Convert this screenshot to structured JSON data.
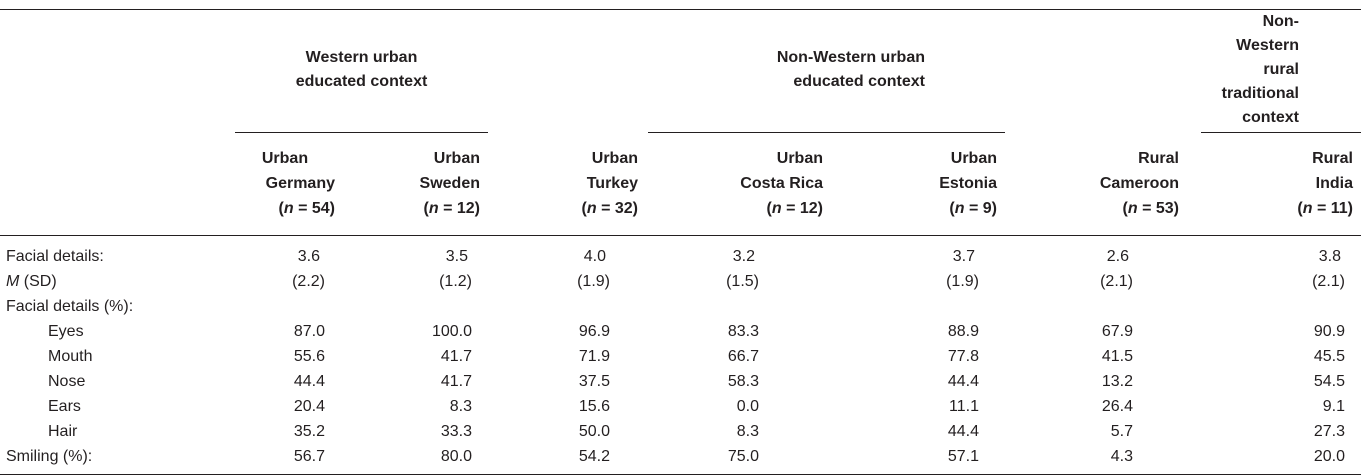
{
  "groups": [
    {
      "line1": "Western urban",
      "line2": "educated context"
    },
    {
      "line1": "Non-Western urban",
      "line2": "educated context"
    },
    {
      "line1": "Non-Western rural",
      "line2": "traditional context"
    }
  ],
  "columns": [
    {
      "line1": "Urban",
      "line2": "Germany",
      "n_label": "n",
      "n_value": " = 54)"
    },
    {
      "line1": "Urban",
      "line2": "Sweden",
      "n_label": "n",
      "n_value": " = 12)"
    },
    {
      "line1": "Urban",
      "line2": "Turkey",
      "n_label": "n",
      "n_value": " = 32)"
    },
    {
      "line1": "Urban",
      "line2": "Costa Rica",
      "n_label": "n",
      "n_value": " = 12)"
    },
    {
      "line1": "Urban",
      "line2": "Estonia",
      "n_label": "n",
      "n_value": " = 9)"
    },
    {
      "line1": "Rural",
      "line2": "Cameroon",
      "n_label": "n",
      "n_value": " = 53)"
    },
    {
      "line1": "Rural",
      "line2": "India",
      "n_label": "n",
      "n_value": " = 11)"
    }
  ],
  "rows": [
    {
      "label": "Facial details:",
      "values": [
        "3.6",
        "3.5",
        "4.0",
        "3.2",
        "3.7",
        "2.6",
        "3.8"
      ]
    },
    {
      "label_italic": "M",
      "label_rest": " (SD)",
      "values": [
        "(2.2)",
        "(1.2)",
        "(1.9)",
        "(1.5)",
        "(1.9)",
        "(2.1)",
        "(2.1)"
      ]
    },
    {
      "label": "Facial details (%):",
      "values": [
        "",
        "",
        "",
        "",
        "",
        "",
        ""
      ]
    },
    {
      "label": "Eyes",
      "values": [
        "87.0",
        "100.0",
        "96.9",
        "83.3",
        "88.9",
        "67.9",
        "90.9"
      ]
    },
    {
      "label": "Mouth",
      "values": [
        "55.6",
        "41.7",
        "71.9",
        "66.7",
        "77.8",
        "41.5",
        "45.5"
      ]
    },
    {
      "label": "Nose",
      "values": [
        "44.4",
        "41.7",
        "37.5",
        "58.3",
        "44.4",
        "13.2",
        "54.5"
      ]
    },
    {
      "label": "Ears",
      "values": [
        "20.4",
        "8.3",
        "15.6",
        "0.0",
        "11.1",
        "26.4",
        "9.1"
      ]
    },
    {
      "label": "Hair",
      "values": [
        "35.2",
        "33.3",
        "50.0",
        "8.3",
        "44.4",
        "5.7",
        "27.3"
      ]
    },
    {
      "label": "Smiling (%):",
      "values": [
        "56.7",
        "80.0",
        "54.2",
        "75.0",
        "57.1",
        "4.3",
        "20.0"
      ]
    }
  ]
}
